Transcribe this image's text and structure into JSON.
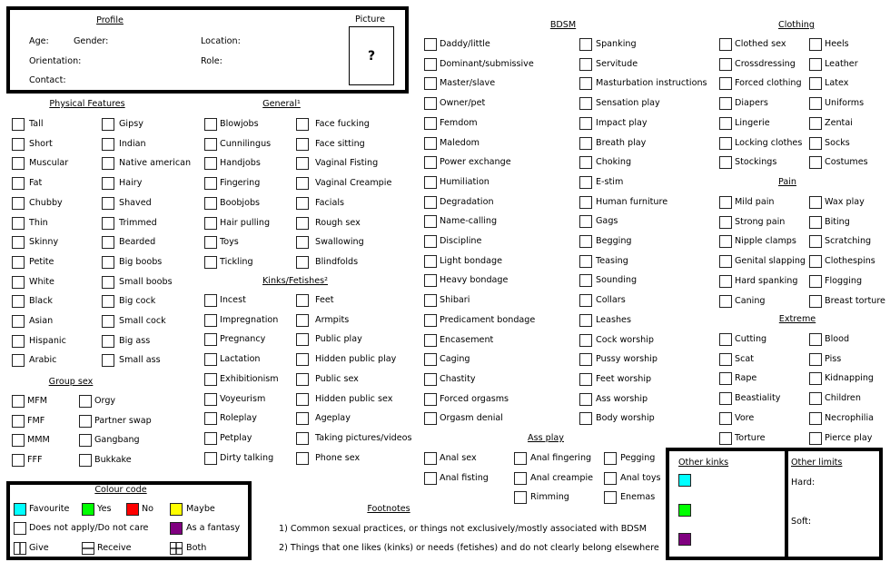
{
  "profile": {
    "title": "Profile",
    "age": "Age:",
    "gender": "Gender:",
    "location": "Location:",
    "orientation": "Orientation:",
    "role": "Role:",
    "contact": "Contact:",
    "picture_label": "Picture",
    "picture_placeholder": "?"
  },
  "sections": [
    {
      "key": "physical",
      "heading": "Physical Features",
      "columns": [
        [
          "Tall",
          "Short",
          "Muscular",
          "Fat",
          "Chubby",
          "Thin",
          "Skinny",
          "Petite",
          "White",
          "Black",
          "Asian",
          "Hispanic",
          "Arabic"
        ],
        [
          "Gipsy",
          "Indian",
          "Native american",
          "Hairy",
          "Shaved",
          "Trimmed",
          "Bearded",
          "Big boobs",
          "Small boobs",
          "Big cock",
          "Small cock",
          "Big ass",
          "Small ass"
        ]
      ]
    },
    {
      "key": "groupsex",
      "heading": "Group sex",
      "columns": [
        [
          "MFM",
          "FMF",
          "MMM",
          "FFF"
        ],
        [
          "Orgy",
          "Partner swap",
          "Gangbang",
          "Bukkake"
        ]
      ]
    },
    {
      "key": "general",
      "heading": "General¹",
      "columns": [
        [
          "Blowjobs",
          "Cunnilingus",
          "Handjobs",
          "Fingering",
          "Boobjobs",
          "Hair pulling",
          "Toys",
          "Tickling"
        ],
        [
          "Face fucking",
          "Face sitting",
          "Vaginal Fisting",
          "Vaginal Creampie",
          "Facials",
          "Rough sex",
          "Swallowing",
          "Blindfolds"
        ]
      ]
    },
    {
      "key": "kinks",
      "heading": "Kinks/Fetishes²",
      "columns": [
        [
          "Incest",
          "Impregnation",
          "Pregnancy",
          "Lactation",
          "Exhibitionism",
          "Voyeurism",
          "Roleplay",
          "Petplay",
          "Dirty talking"
        ],
        [
          "Feet",
          "Armpits",
          "Public play",
          "Hidden public play",
          "Public sex",
          "Hidden public sex",
          "Ageplay",
          "Taking pictures/videos",
          "Phone sex"
        ]
      ]
    },
    {
      "key": "bdsm",
      "heading": "BDSM",
      "columns": [
        [
          "Daddy/little",
          "Dominant/submissive",
          "Master/slave",
          "Owner/pet",
          "Femdom",
          "Maledom",
          "Power exchange",
          "Humiliation",
          "Degradation",
          "Name-calling",
          "Discipline",
          "Light bondage",
          "Heavy bondage",
          "Shibari",
          "Predicament bondage",
          "Encasement",
          "Caging",
          "Chastity",
          "Forced orgasms",
          "Orgasm denial"
        ],
        [
          "Spanking",
          "Servitude",
          "Masturbation instructions",
          "Sensation play",
          "Impact play",
          "Breath play",
          "Choking",
          "E-stim",
          "Human furniture",
          "Gags",
          "Begging",
          "Teasing",
          "Sounding",
          "Collars",
          "Leashes",
          "Cock worship",
          "Pussy worship",
          "Feet worship",
          "Ass worship",
          "Body worship"
        ]
      ]
    },
    {
      "key": "clothing",
      "heading": "Clothing",
      "columns": [
        [
          "Clothed sex",
          "Crossdressing",
          "Forced clothing",
          "Diapers",
          "Lingerie",
          "Locking clothes",
          "Stockings"
        ],
        [
          "Heels",
          "Leather",
          "Latex",
          "Uniforms",
          "Zentai",
          "Socks",
          "Costumes"
        ]
      ]
    },
    {
      "key": "pain",
      "heading": "Pain",
      "columns": [
        [
          "Mild pain",
          "Strong pain",
          "Nipple clamps",
          "Genital slapping",
          "Hard spanking",
          "Caning"
        ],
        [
          "Wax play",
          "Biting",
          "Scratching",
          "Clothespins",
          "Flogging",
          "Breast torture"
        ]
      ]
    },
    {
      "key": "extreme",
      "heading": "Extreme",
      "columns": [
        [
          "Cutting",
          "Scat",
          "Rape",
          "Beastiality",
          "Vore",
          "Torture"
        ],
        [
          "Blood",
          "Piss",
          "Kidnapping",
          "Children",
          "Necrophilia",
          "Pierce play"
        ]
      ]
    },
    {
      "key": "assplay",
      "heading": "Ass play",
      "columns": [
        [
          "Anal sex",
          "Anal fisting"
        ],
        [
          "Anal fingering",
          "Anal creampie",
          "Rimming"
        ],
        [
          "Pegging",
          "Anal toys",
          "Enemas"
        ]
      ]
    }
  ],
  "colour_code": {
    "title": "Colour code",
    "items": [
      {
        "label": "Favourite",
        "color": "#00ffff"
      },
      {
        "label": "Yes",
        "color": "#00ff00"
      },
      {
        "label": "No",
        "color": "#ff0000"
      },
      {
        "label": "Maybe",
        "color": "#ffff00"
      },
      {
        "label": "Does not apply/Do not care",
        "color": "#ffffff"
      },
      {
        "label": "As a fantasy",
        "color": "#800080"
      },
      {
        "label": "Give",
        "icon": "give-icon"
      },
      {
        "label": "Receive",
        "icon": "receive-icon"
      },
      {
        "label": "Both",
        "icon": "both-icon"
      }
    ]
  },
  "footnotes": {
    "title": "Footnotes",
    "items": [
      "1) Common sexual practices, or things not exclusively/mostly associated with BDSM",
      "2) Things that one likes (kinks) or needs (fetishes) and do not clearly belong elsewhere"
    ]
  },
  "other_kinks": {
    "title": "Other kinks",
    "colors": [
      "#00ffff",
      "#00ff00",
      "#800080"
    ]
  },
  "other_limits": {
    "title": "Other limits",
    "hard": "Hard:",
    "soft": "Soft:"
  }
}
